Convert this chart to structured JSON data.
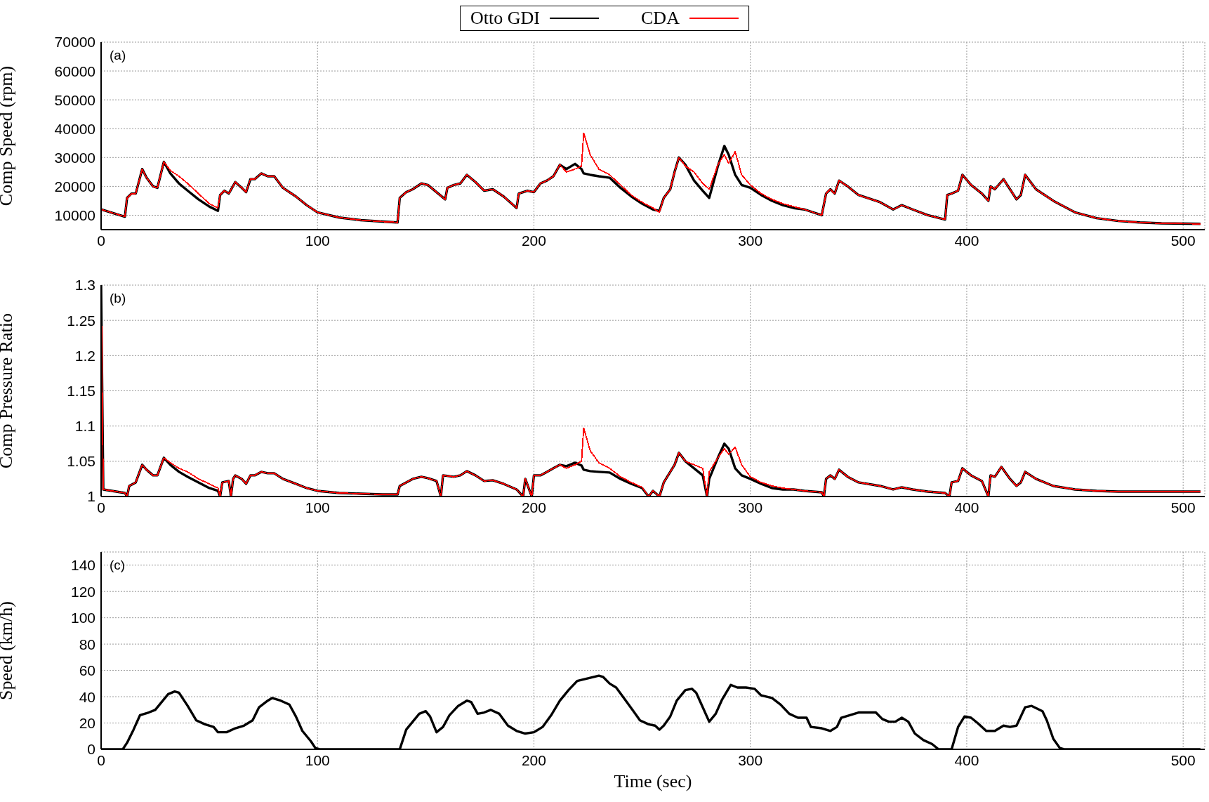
{
  "chart_data": [
    {
      "type": "line",
      "ylabel": "Comp Speed (rpm)",
      "annotations": [
        "(a)"
      ],
      "legend": "top",
      "grid": true,
      "marker": "none",
      "line_style": "solid",
      "xlim": [
        0,
        510
      ],
      "xticks": [
        0,
        100,
        200,
        300,
        400,
        500
      ],
      "ylim": [
        5000,
        70000
      ],
      "yticks": [
        10000,
        20000,
        30000,
        40000,
        50000,
        60000,
        70000
      ],
      "x": [
        0,
        11,
        12,
        14,
        16,
        19,
        21,
        24,
        26,
        29,
        32,
        36,
        40,
        45,
        50,
        54,
        55,
        57,
        59,
        62,
        65,
        67,
        69,
        71,
        74,
        77,
        80,
        84,
        90,
        95,
        100,
        110,
        120,
        130,
        137,
        138,
        141,
        144,
        148,
        151,
        155,
        159,
        160,
        163,
        166,
        169,
        173,
        177,
        181,
        186,
        192,
        193,
        197,
        200,
        203,
        206,
        209,
        212,
        215,
        219,
        222,
        223,
        226,
        230,
        235,
        240,
        245,
        250,
        255,
        258,
        260,
        263,
        265,
        267,
        270,
        274,
        278,
        281,
        285,
        288,
        290,
        293,
        296,
        300,
        305,
        310,
        315,
        320,
        325,
        333,
        335,
        337,
        339,
        341,
        345,
        350,
        360,
        366,
        370,
        375,
        382,
        390,
        391,
        393,
        396,
        398,
        402,
        407,
        410,
        411,
        413,
        417,
        420,
        423,
        425,
        427,
        432,
        440,
        450,
        460,
        470,
        480,
        490,
        508
      ],
      "series": [
        {
          "name": "Otto GDI",
          "color": "#000000",
          "values": [
            12000,
            9500,
            16000,
            17500,
            17500,
            26000,
            23000,
            20000,
            19500,
            28500,
            24500,
            21000,
            18500,
            15500,
            13000,
            11500,
            17000,
            18500,
            17500,
            21500,
            19500,
            18000,
            22500,
            22500,
            24500,
            23500,
            23500,
            19500,
            16500,
            13500,
            11000,
            9200,
            8300,
            7800,
            7500,
            16000,
            18000,
            19000,
            21000,
            20500,
            18000,
            15500,
            19500,
            20500,
            21000,
            24000,
            21500,
            18500,
            19000,
            16500,
            12500,
            17500,
            18500,
            18000,
            21000,
            22000,
            23500,
            27500,
            26000,
            27800,
            26000,
            24500,
            24000,
            23500,
            23000,
            19500,
            16500,
            14000,
            12000,
            11500,
            16000,
            19000,
            25000,
            30000,
            27500,
            22000,
            18500,
            16000,
            27000,
            34000,
            31000,
            24000,
            20500,
            19500,
            17000,
            15000,
            13500,
            12500,
            12000,
            10000,
            17500,
            19000,
            17500,
            22000,
            20000,
            17000,
            14500,
            12000,
            13500,
            12000,
            10000,
            8500,
            17000,
            17500,
            18500,
            24000,
            20500,
            17500,
            15000,
            20000,
            19000,
            22500,
            19000,
            15500,
            17000,
            24000,
            19000,
            15000,
            11000,
            9000,
            8000,
            7500,
            7200,
            7000
          ]
        },
        {
          "name": "CDA",
          "color": "#ff0000",
          "values": [
            12000,
            9500,
            16000,
            17500,
            17500,
            26000,
            23000,
            20000,
            19500,
            28500,
            25500,
            23500,
            21000,
            17500,
            14000,
            12500,
            17000,
            18500,
            17500,
            21500,
            19500,
            18000,
            22500,
            22500,
            24500,
            23500,
            23500,
            19500,
            16500,
            13500,
            11000,
            9200,
            8300,
            7800,
            7500,
            16000,
            18000,
            19000,
            21000,
            20500,
            18000,
            15500,
            19500,
            20500,
            21000,
            24000,
            21500,
            18500,
            19000,
            16500,
            12500,
            17500,
            18500,
            18000,
            21000,
            22000,
            23500,
            27500,
            25000,
            26000,
            27000,
            38500,
            31000,
            26000,
            24000,
            20500,
            17000,
            14500,
            12500,
            11000,
            16000,
            19000,
            25000,
            30000,
            27000,
            25000,
            21000,
            19000,
            27500,
            31000,
            28000,
            32000,
            24000,
            20500,
            17500,
            15500,
            14000,
            13000,
            12000,
            10000,
            17500,
            19000,
            17500,
            22000,
            20000,
            17000,
            14500,
            12000,
            13500,
            12000,
            10000,
            8500,
            17000,
            17500,
            18500,
            24000,
            20500,
            17500,
            15000,
            20000,
            19000,
            22500,
            19000,
            15500,
            17000,
            24000,
            19000,
            15000,
            11000,
            9000,
            8000,
            7500,
            7200,
            7000
          ]
        }
      ]
    },
    {
      "type": "line",
      "ylabel": "Comp Pressure Ratio",
      "annotations": [
        "(b)"
      ],
      "grid": true,
      "marker": "none",
      "line_style": "solid",
      "xlim": [
        0,
        510
      ],
      "xticks": [
        0,
        100,
        200,
        300,
        400,
        500
      ],
      "ylim": [
        1,
        1.3
      ],
      "yticks": [
        1,
        1.05,
        1.1,
        1.15,
        1.2,
        1.25,
        1.3
      ],
      "x": [
        0,
        1,
        11,
        12,
        13,
        16,
        19,
        21,
        24,
        26,
        29,
        32,
        36,
        40,
        45,
        50,
        54,
        55,
        56,
        59,
        60,
        61,
        62,
        65,
        67,
        69,
        71,
        74,
        77,
        80,
        84,
        90,
        95,
        100,
        110,
        120,
        130,
        137,
        138,
        141,
        144,
        148,
        151,
        155,
        157,
        158,
        163,
        166,
        169,
        173,
        177,
        181,
        186,
        192,
        195,
        196,
        199,
        200,
        203,
        206,
        209,
        212,
        215,
        219,
        222,
        223,
        226,
        230,
        235,
        240,
        245,
        250,
        253,
        255,
        258,
        260,
        263,
        265,
        267,
        270,
        274,
        278,
        280,
        281,
        285,
        288,
        290,
        293,
        296,
        300,
        305,
        310,
        315,
        320,
        325,
        333,
        334,
        335,
        337,
        339,
        341,
        345,
        350,
        360,
        366,
        370,
        375,
        382,
        390,
        392,
        393,
        396,
        398,
        402,
        407,
        410,
        411,
        413,
        416,
        420,
        423,
        425,
        427,
        432,
        440,
        450,
        460,
        470,
        480,
        490,
        508
      ],
      "series": [
        {
          "color": "#000000",
          "values": [
            1.3,
            1.01,
            1.005,
            1,
            1.015,
            1.02,
            1.045,
            1.038,
            1.03,
            1.03,
            1.055,
            1.045,
            1.035,
            1.028,
            1.02,
            1.012,
            1.008,
            1,
            1.02,
            1.022,
            1,
            1.025,
            1.03,
            1.025,
            1.018,
            1.03,
            1.03,
            1.035,
            1.033,
            1.033,
            1.025,
            1.018,
            1.012,
            1.008,
            1.005,
            1.004,
            1.003,
            1.003,
            1.015,
            1.02,
            1.025,
            1.028,
            1.026,
            1.022,
            1,
            1.03,
            1.028,
            1.03,
            1.036,
            1.03,
            1.022,
            1.023,
            1.018,
            1.01,
            1,
            1.025,
            1,
            1.03,
            1.03,
            1.035,
            1.04,
            1.045,
            1.043,
            1.048,
            1.044,
            1.038,
            1.036,
            1.035,
            1.034,
            1.025,
            1.018,
            1.012,
            1,
            1.008,
            1,
            1.02,
            1.035,
            1.045,
            1.062,
            1.05,
            1.04,
            1.03,
            1,
            1.025,
            1.055,
            1.075,
            1.068,
            1.04,
            1.03,
            1.025,
            1.018,
            1.012,
            1.01,
            1.01,
            1.008,
            1.006,
            1,
            1.025,
            1.03,
            1.025,
            1.038,
            1.028,
            1.02,
            1.015,
            1.01,
            1.013,
            1.01,
            1.007,
            1.005,
            1,
            1.02,
            1.022,
            1.04,
            1.03,
            1.022,
            1,
            1.03,
            1.028,
            1.042,
            1.025,
            1.015,
            1.02,
            1.035,
            1.025,
            1.015,
            1.01,
            1.008,
            1.007,
            1.007,
            1.007,
            1.007
          ]
        },
        {
          "color": "#ff0000",
          "values": [
            1.3,
            1.01,
            1.005,
            1,
            1.015,
            1.02,
            1.045,
            1.038,
            1.03,
            1.03,
            1.055,
            1.048,
            1.04,
            1.035,
            1.025,
            1.018,
            1.012,
            1,
            1.02,
            1.022,
            1,
            1.025,
            1.03,
            1.025,
            1.018,
            1.03,
            1.03,
            1.035,
            1.033,
            1.033,
            1.025,
            1.018,
            1.012,
            1.008,
            1.005,
            1.004,
            1.003,
            1.003,
            1.015,
            1.02,
            1.025,
            1.028,
            1.026,
            1.022,
            1,
            1.03,
            1.028,
            1.03,
            1.036,
            1.03,
            1.022,
            1.023,
            1.018,
            1.01,
            1,
            1.025,
            1,
            1.03,
            1.03,
            1.035,
            1.04,
            1.045,
            1.04,
            1.045,
            1.05,
            1.097,
            1.065,
            1.048,
            1.04,
            1.028,
            1.02,
            1.013,
            1,
            1.008,
            1,
            1.02,
            1.035,
            1.045,
            1.062,
            1.05,
            1.045,
            1.04,
            1,
            1.035,
            1.055,
            1.068,
            1.06,
            1.07,
            1.045,
            1.028,
            1.02,
            1.015,
            1.012,
            1.01,
            1.008,
            1.006,
            1,
            1.025,
            1.03,
            1.025,
            1.038,
            1.028,
            1.02,
            1.015,
            1.01,
            1.013,
            1.01,
            1.007,
            1.005,
            1,
            1.02,
            1.022,
            1.04,
            1.03,
            1.022,
            1,
            1.03,
            1.028,
            1.042,
            1.025,
            1.015,
            1.02,
            1.035,
            1.025,
            1.015,
            1.01,
            1.008,
            1.007,
            1.007,
            1.007,
            1.007
          ]
        }
      ]
    },
    {
      "type": "line",
      "ylabel": "Speed (km/h)",
      "xlabel": "Time (sec)",
      "annotations": [
        "(c)"
      ],
      "grid": true,
      "marker": "none",
      "line_style": "solid",
      "xlim": [
        0,
        510
      ],
      "xticks": [
        0,
        100,
        200,
        300,
        400,
        500
      ],
      "ylim": [
        0,
        150
      ],
      "yticks": [
        0,
        20,
        40,
        60,
        80,
        100,
        120,
        140
      ],
      "x": [
        0,
        10,
        12,
        15,
        18,
        22,
        25,
        28,
        31,
        34,
        36,
        40,
        44,
        48,
        52,
        54,
        58,
        62,
        66,
        70,
        73,
        77,
        79,
        83,
        87,
        90,
        93,
        97,
        99,
        101,
        138,
        141,
        144,
        147,
        150,
        152,
        155,
        158,
        161,
        165,
        169,
        171,
        174,
        177,
        180,
        184,
        188,
        192,
        196,
        200,
        204,
        208,
        212,
        216,
        220,
        225,
        230,
        232,
        235,
        238,
        242,
        246,
        249,
        253,
        256,
        258,
        260,
        263,
        266,
        270,
        273,
        275,
        278,
        281,
        284,
        287,
        291,
        294,
        298,
        302,
        305,
        310,
        314,
        318,
        322,
        326,
        328,
        333,
        337,
        340,
        342,
        346,
        350,
        355,
        358,
        361,
        364,
        367,
        370,
        373,
        376,
        380,
        384,
        387,
        393,
        396,
        399,
        402,
        405,
        409,
        413,
        417,
        420,
        423,
        427,
        430,
        435,
        437,
        440,
        443,
        445,
        508
      ],
      "series": [
        {
          "color": "#000000",
          "values": [
            0,
            0,
            5,
            15,
            26,
            28,
            30,
            36,
            42,
            44,
            43,
            33,
            22,
            19,
            17,
            13,
            13,
            16,
            18,
            22,
            32,
            37,
            39,
            37,
            34,
            25,
            14,
            6,
            1,
            0,
            0,
            15,
            21,
            27,
            29,
            25,
            13,
            17,
            26,
            33,
            37,
            36,
            27,
            28,
            30,
            27,
            18,
            14,
            12,
            13,
            17,
            26,
            37,
            45,
            52,
            54,
            56,
            55,
            50,
            47,
            38,
            29,
            22,
            19,
            18,
            15,
            18,
            25,
            37,
            45,
            46,
            43,
            32,
            21,
            27,
            38,
            49,
            47,
            47,
            46,
            41,
            39,
            34,
            27,
            24,
            24,
            17,
            16,
            14,
            17,
            24,
            26,
            28,
            28,
            28,
            23,
            21,
            21,
            24,
            21,
            12,
            7,
            4,
            0,
            0,
            17,
            25,
            24,
            20,
            14,
            14,
            18,
            17,
            18,
            32,
            33,
            29,
            22,
            8,
            1,
            0,
            0
          ]
        }
      ]
    }
  ]
}
